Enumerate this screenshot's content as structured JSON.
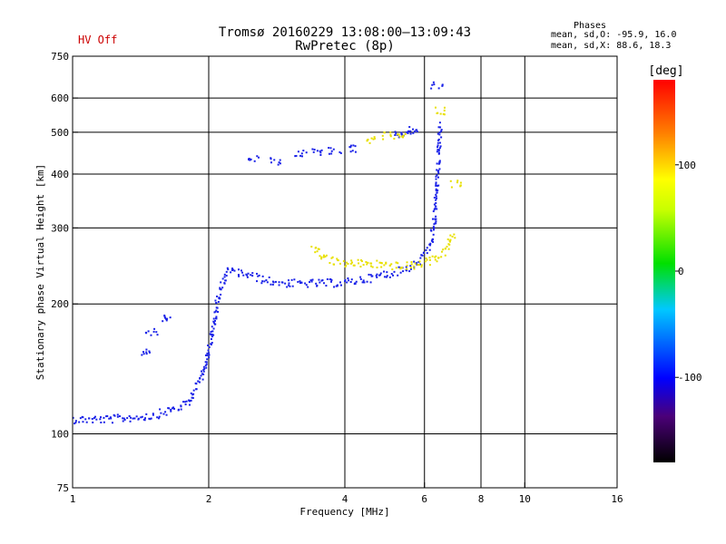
{
  "header": {
    "hv_status": "HV Off",
    "title_line1": "Tromsø 20160229 13:08:00–13:09:43",
    "title_line2": "RwPretec (8p)"
  },
  "phases": {
    "title": "Phases",
    "o_stats": "mean, sd,O: -95.9, 16.0",
    "x_stats": "mean, sd,X:  88.6, 18.3"
  },
  "chart_data": {
    "type": "scatter",
    "xlabel": "Frequency [MHz]",
    "ylabel": "Stationary phase Virtual Height [km]",
    "x_scale": "log",
    "y_scale": "log",
    "xlim": [
      1,
      16
    ],
    "ylim": [
      75,
      750
    ],
    "x_ticks": [
      1,
      2,
      4,
      6,
      8,
      10,
      16
    ],
    "x_tick_labels": [
      "1",
      "2",
      "4",
      "6",
      "8",
      "10",
      "16"
    ],
    "y_ticks": [
      75,
      100,
      200,
      300,
      400,
      500,
      600,
      750
    ],
    "y_tick_labels": [
      "75",
      "100",
      "200",
      "300",
      "400",
      "500",
      "600",
      "750"
    ],
    "x_grid": [
      2,
      4,
      6,
      8,
      10
    ],
    "y_grid": [
      100,
      200,
      300,
      400,
      500,
      600
    ],
    "grid": true,
    "colorbar": {
      "label": "[deg]",
      "range": [
        -180,
        180
      ],
      "ticks": [
        100,
        0,
        -100
      ],
      "tick_labels": [
        "100",
        "0",
        "-100"
      ]
    },
    "series": [
      {
        "name": "O",
        "color": "#1a22e8",
        "trace_f": [
          1.0,
          1.2,
          1.5,
          1.8,
          1.95,
          2.05,
          2.1,
          2.2,
          2.4,
          2.7,
          3.0,
          3.5,
          4.0,
          4.5,
          5.0,
          5.5,
          5.8,
          6.2,
          6.35,
          6.45,
          6.5
        ],
        "trace_h": [
          108,
          108,
          110,
          117,
          140,
          175,
          210,
          238,
          235,
          226,
          223,
          223,
          224,
          229,
          235,
          242,
          250,
          275,
          330,
          420,
          520
        ],
        "extra_points": [
          [
            2.5,
            435
          ],
          [
            2.8,
            428
          ],
          [
            3.2,
            445
          ],
          [
            3.5,
            450
          ],
          [
            3.8,
            452
          ],
          [
            4.1,
            458
          ],
          [
            5.2,
            495
          ],
          [
            5.5,
            500
          ],
          [
            5.7,
            505
          ],
          [
            1.5,
            172
          ],
          [
            1.6,
            185
          ],
          [
            1.45,
            155
          ],
          [
            6.4,
            640
          ]
        ]
      },
      {
        "name": "X",
        "color": "#e8e000",
        "trace_f": [
          3.4,
          3.6,
          3.8,
          4.1,
          4.5,
          5.0,
          5.4,
          5.8,
          6.2,
          6.6,
          6.8,
          7.0
        ],
        "trace_h": [
          272,
          258,
          250,
          248,
          248,
          246,
          244,
          246,
          252,
          262,
          275,
          292
        ],
        "extra_points": [
          [
            5.0,
            490
          ],
          [
            5.4,
            488
          ],
          [
            6.5,
            560
          ],
          [
            7.0,
            380
          ],
          [
            4.6,
            480
          ]
        ]
      }
    ]
  }
}
